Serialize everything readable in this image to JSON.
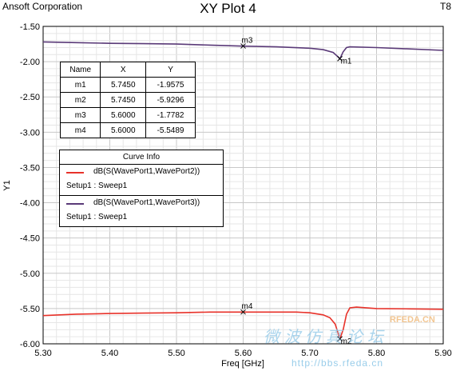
{
  "header": {
    "company": "Ansoft Corporation",
    "title": "XY Plot 4",
    "tag": "T8"
  },
  "chart_data": {
    "type": "line",
    "title": "XY Plot 4",
    "xlabel": "Freq [GHz]",
    "ylabel": "Y1",
    "xlim": [
      5.3,
      5.9
    ],
    "ylim": [
      -6.0,
      -1.5
    ],
    "grid": true,
    "x_ticks": [
      "5.30",
      "5.40",
      "5.50",
      "5.60",
      "5.70",
      "5.80",
      "5.90"
    ],
    "y_ticks": [
      "-1.50",
      "-2.00",
      "-2.50",
      "-3.00",
      "-3.50",
      "-4.00",
      "-4.50",
      "-5.00",
      "-5.50",
      "-6.00"
    ],
    "series": [
      {
        "name": "dB(S(WavePort1,WavePort2))",
        "setup": "Setup1 : Sweep1",
        "color": "#e8322a",
        "x": [
          5.3,
          5.35,
          5.4,
          5.45,
          5.5,
          5.55,
          5.6,
          5.65,
          5.68,
          5.7,
          5.72,
          5.73,
          5.738,
          5.745,
          5.75,
          5.755,
          5.76,
          5.77,
          5.8,
          5.85,
          5.9
        ],
        "y": [
          -5.6,
          -5.58,
          -5.57,
          -5.565,
          -5.56,
          -5.55,
          -5.55,
          -5.55,
          -5.55,
          -5.56,
          -5.59,
          -5.63,
          -5.72,
          -5.93,
          -5.8,
          -5.58,
          -5.49,
          -5.48,
          -5.5,
          -5.505,
          -5.51
        ]
      },
      {
        "name": "dB(S(WavePort1,WavePort3))",
        "setup": "Setup1 : Sweep1",
        "color": "#5a3a78",
        "x": [
          5.3,
          5.35,
          5.4,
          5.45,
          5.5,
          5.55,
          5.6,
          5.65,
          5.7,
          5.72,
          5.735,
          5.742,
          5.745,
          5.75,
          5.755,
          5.76,
          5.8,
          5.85,
          5.9
        ],
        "y": [
          -1.72,
          -1.73,
          -1.74,
          -1.745,
          -1.75,
          -1.765,
          -1.78,
          -1.79,
          -1.81,
          -1.83,
          -1.87,
          -1.93,
          -1.96,
          -1.86,
          -1.8,
          -1.79,
          -1.8,
          -1.82,
          -1.84
        ]
      }
    ],
    "markers": [
      {
        "name": "m1",
        "x": 5.745,
        "y": -1.9575
      },
      {
        "name": "m2",
        "x": 5.745,
        "y": -5.9296
      },
      {
        "name": "m3",
        "x": 5.6,
        "y": -1.7782
      },
      {
        "name": "m4",
        "x": 5.6,
        "y": -5.5489
      }
    ]
  },
  "marker_table": {
    "headers": [
      "Name",
      "X",
      "Y"
    ],
    "rows": [
      [
        "m1",
        "5.7450",
        "-1.9575"
      ],
      [
        "m2",
        "5.7450",
        "-5.9296"
      ],
      [
        "m3",
        "5.6000",
        "-1.7782"
      ],
      [
        "m4",
        "5.6000",
        "-5.5489"
      ]
    ]
  },
  "curve_info": {
    "title": "Curve Info"
  },
  "watermark": {
    "chinese": "微波仿真论坛",
    "brand": "RFEDA.CN",
    "url": "http://bbs.rfeda.cn"
  }
}
